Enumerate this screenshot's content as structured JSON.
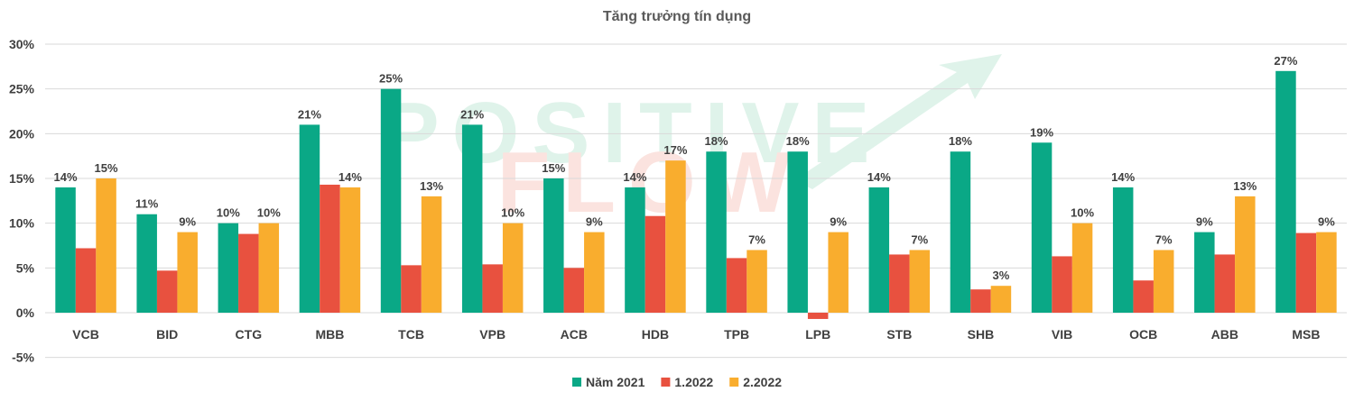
{
  "chart_data": {
    "type": "bar",
    "title": "Tăng trưởng tín dụng",
    "categories": [
      "VCB",
      "BID",
      "CTG",
      "MBB",
      "TCB",
      "VPB",
      "ACB",
      "HDB",
      "TPB",
      "LPB",
      "STB",
      "SHB",
      "VIB",
      "OCB",
      "ABB",
      "MSB"
    ],
    "series": [
      {
        "name": "Năm 2021",
        "color": "#0aa886",
        "values": [
          0.14,
          0.11,
          0.1,
          0.21,
          0.25,
          0.21,
          0.15,
          0.14,
          0.18,
          0.18,
          0.14,
          0.18,
          0.19,
          0.14,
          0.09,
          0.27
        ],
        "labels": [
          "14%",
          "11%",
          "10%",
          "21%",
          "25%",
          "21%",
          "15%",
          "14%",
          "18%",
          "18%",
          "14%",
          "18%",
          "19%",
          "14%",
          "9%",
          "27%"
        ]
      },
      {
        "name": "1.2022",
        "color": "#e8513f",
        "values": [
          0.072,
          0.047,
          0.088,
          0.143,
          0.053,
          0.054,
          0.05,
          0.108,
          0.061,
          -0.007,
          0.065,
          0.026,
          0.063,
          0.036,
          0.065,
          0.089
        ],
        "labels": []
      },
      {
        "name": "2.2022",
        "color": "#f9ad2e",
        "values": [
          0.15,
          0.09,
          0.1,
          0.14,
          0.13,
          0.1,
          0.09,
          0.17,
          0.07,
          0.09,
          0.07,
          0.03,
          0.1,
          0.07,
          0.13,
          0.09
        ],
        "labels": [
          "15%",
          "9%",
          "10%",
          "14%",
          "13%",
          "10%",
          "9%",
          "17%",
          "7%",
          "9%",
          "7%",
          "3%",
          "10%",
          "7%",
          "13%",
          "9%"
        ]
      }
    ],
    "ylim": [
      -0.05,
      0.3
    ],
    "yticks": [
      0.3,
      0.25,
      0.2,
      0.15,
      0.1,
      0.05,
      0.0,
      -0.05
    ],
    "ytick_labels": [
      "30%",
      "25%",
      "20%",
      "15%",
      "10%",
      "5%",
      "0%",
      "-5%"
    ],
    "grid": true,
    "legend_position": "bottom"
  },
  "watermark": {
    "line1": "POSITIVE",
    "line2": "FLOW",
    "color1": "#dff3ea",
    "color2": "#fbe3df"
  }
}
